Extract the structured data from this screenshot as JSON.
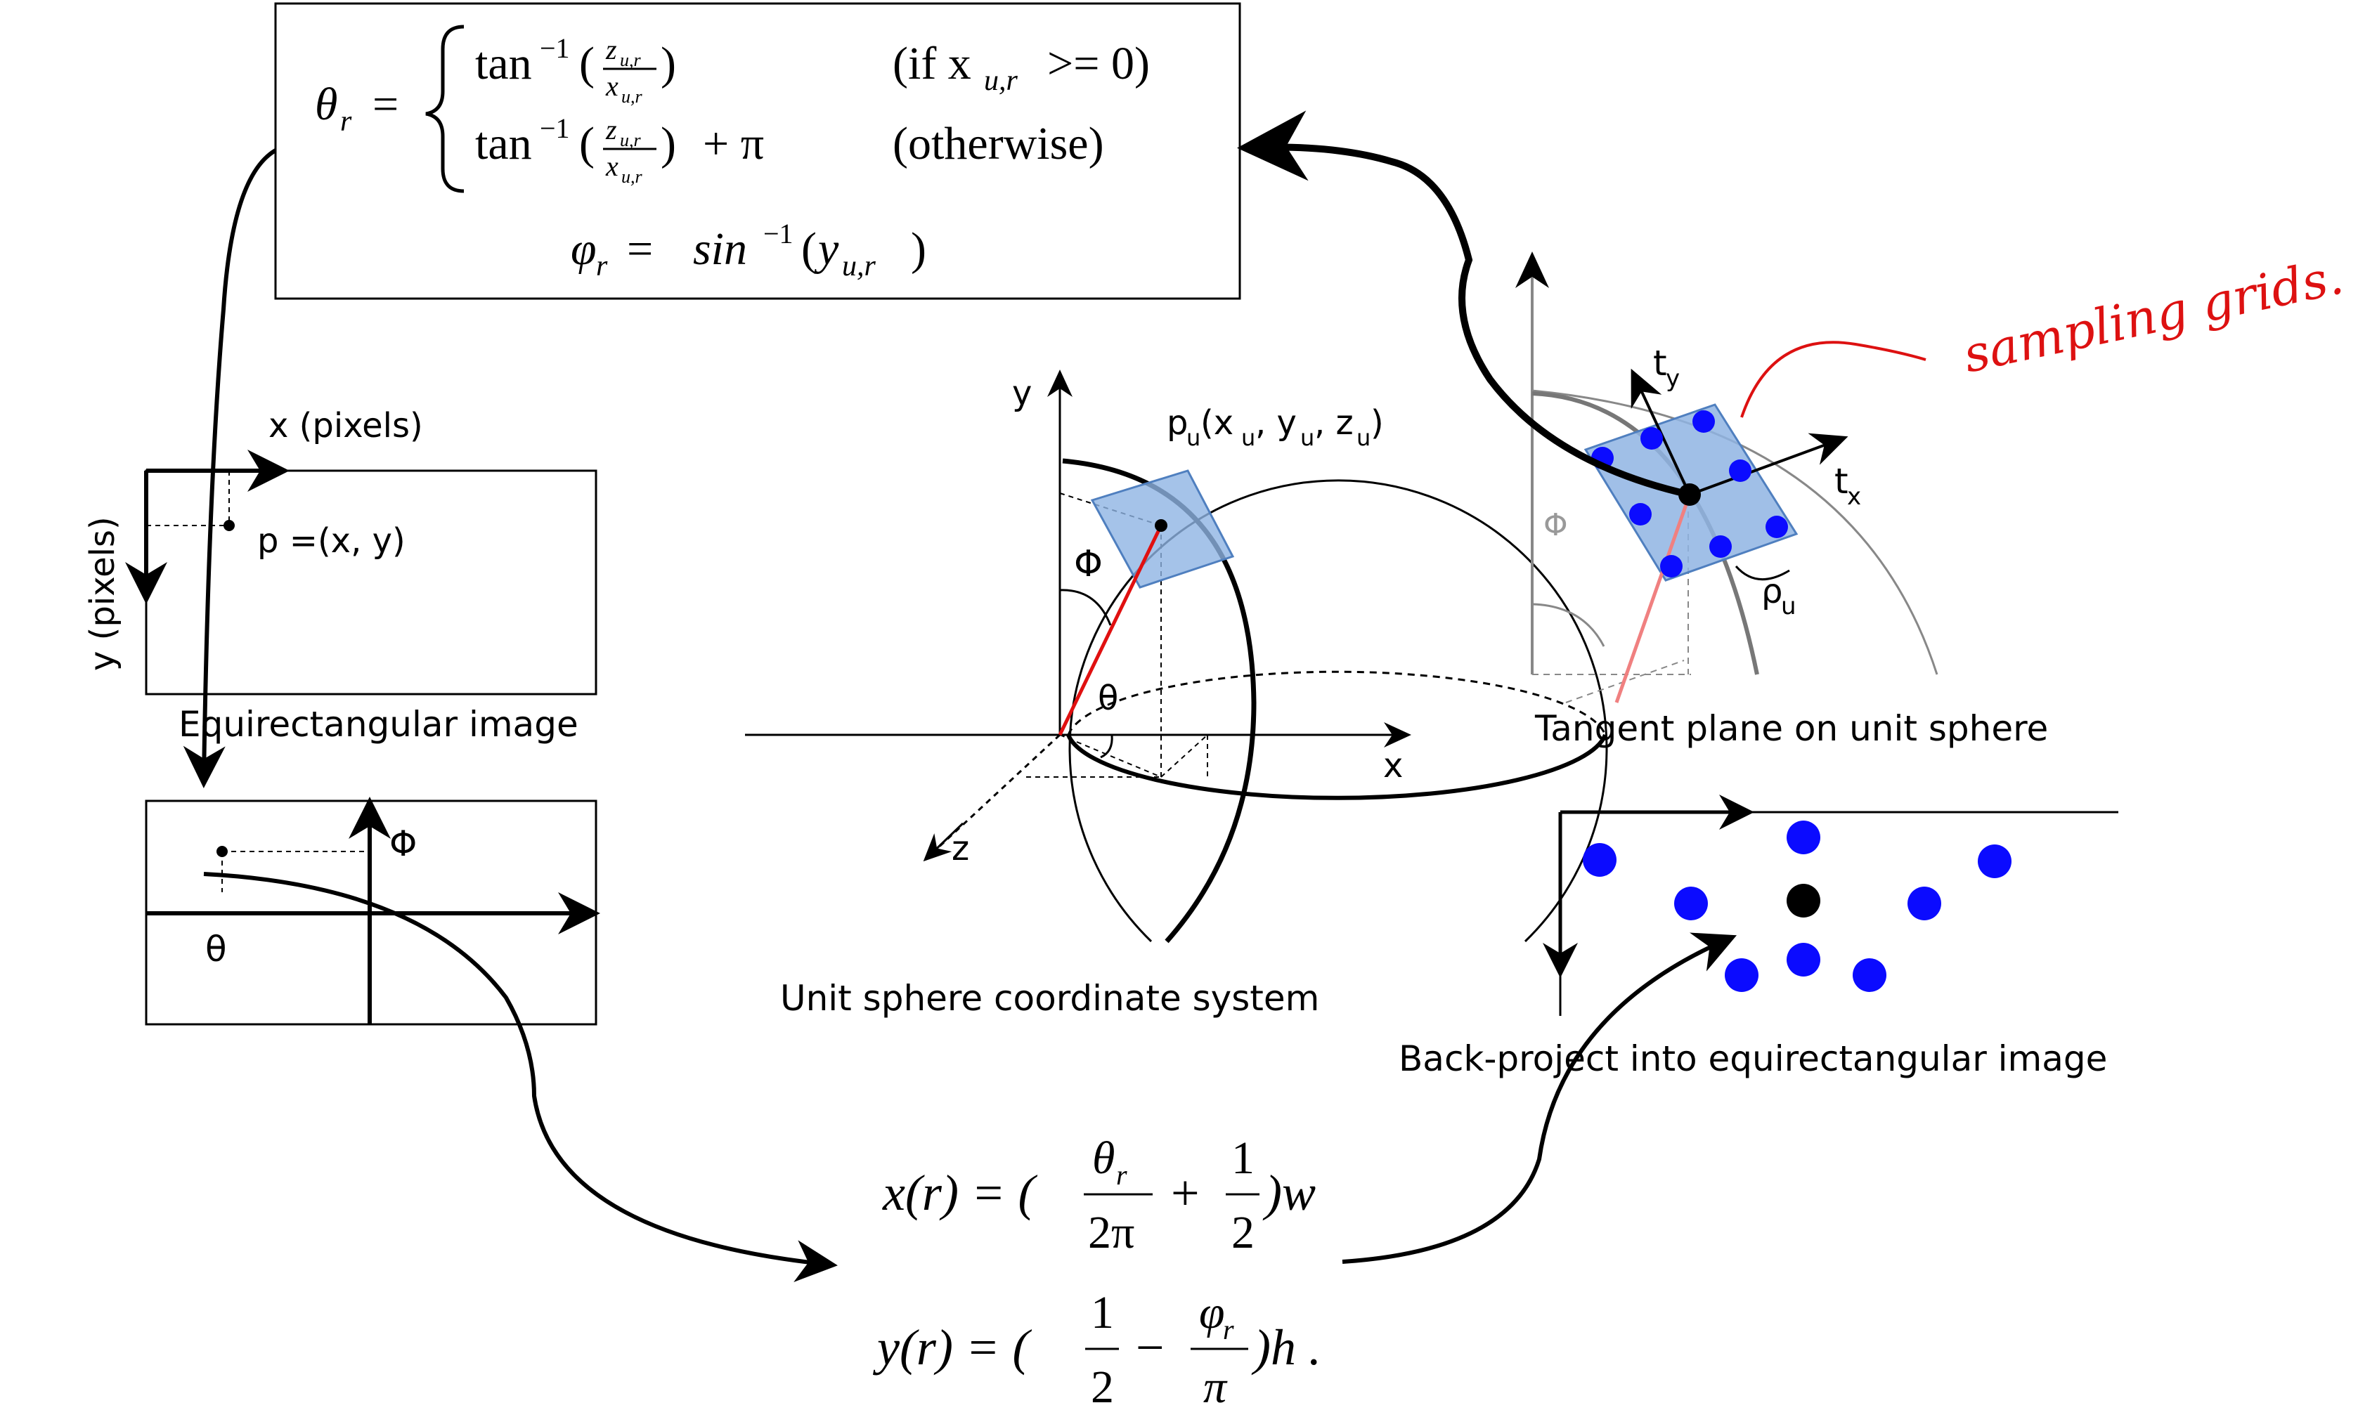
{
  "equirect": {
    "x_axis_label": "x (pixels)",
    "y_axis_label": "y (pixels)",
    "point_label": "p =(x, y)",
    "caption": "Equirectangular image",
    "phi_label": "Φ",
    "theta_label": "θ"
  },
  "sphere": {
    "axis_y": "y",
    "axis_x": "x",
    "axis_z": "z",
    "point_label_base": "p",
    "point_sub": "u",
    "point_coords_open": "(x",
    "point_coords_sub1": "u",
    "point_coords_mid1": ", y",
    "point_coords_sub2": "u",
    "point_coords_mid2": ", z",
    "point_coords_sub3": "u",
    "point_coords_close": ")",
    "phi": "Φ",
    "theta": "θ",
    "caption": "Unit sphere coordinate system"
  },
  "tangent": {
    "ty_base": "t",
    "ty_sub": "y",
    "tx_base": "t",
    "tx_sub": "x",
    "phi": "Φ",
    "rho_base": "ρ",
    "rho_sub": "u",
    "caption": "Tangent plane on unit sphere",
    "annotation": "sampling grids."
  },
  "backproject": {
    "caption": "Back-project into equirectangular image"
  },
  "formula_theta": {
    "lhs": "θ",
    "lhs_sub": "r",
    "case1_cond": "(if x",
    "case1_cond_sub": "u,r",
    "case1_cond_tail": ">= 0)",
    "case2_cond": "(otherwise)",
    "plus_pi": "+ π",
    "tan_inv": "tan",
    "num": "z",
    "den": "x",
    "frac_sub": "u,r"
  },
  "formula_phi": {
    "lhs": "φ",
    "lhs_sub": "r",
    "rhs_fn": "sin",
    "rhs_arg": "y",
    "rhs_arg_sub": "u,r"
  },
  "formula_x": {
    "lhs": "x(r) = (",
    "frac1_num": "θ",
    "frac1_num_sub": "r",
    "frac1_den": "2π",
    "plus": "+",
    "frac2_num": "1",
    "frac2_den": "2",
    "tail": ")w"
  },
  "formula_y": {
    "lhs": "y(r) = (",
    "frac1_num": "1",
    "frac1_den": "2",
    "minus": "−",
    "frac2_num": "φ",
    "frac2_num_sub": "r",
    "frac2_den": "π",
    "tail": ")h ."
  },
  "colors": {
    "dot_blue": "#0b0bff",
    "plane_fill": "#8fb4e3",
    "plane_stroke": "#4f7fbf",
    "radius_red": "#e01010",
    "annotation_red": "#dd1111"
  }
}
